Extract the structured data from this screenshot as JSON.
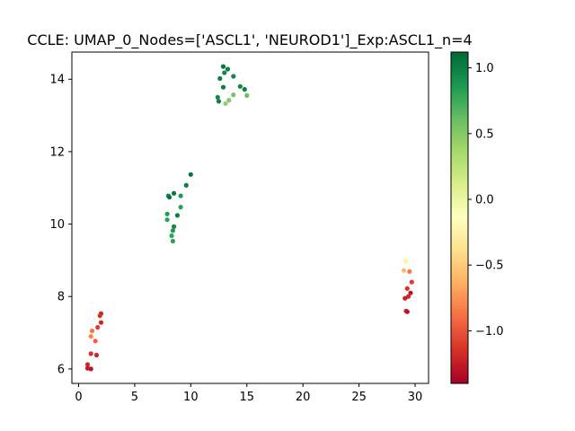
{
  "chart_data": {
    "type": "scatter",
    "title": "CCLE: UMAP_0_Nodes=['ASCL1', 'NEUROD1']_Exp:ASCL1_n=4",
    "xlabel": "",
    "ylabel": "",
    "xlim": [
      -0.6,
      31.2
    ],
    "ylim": [
      5.6,
      14.75
    ],
    "xticks": [
      0,
      5,
      10,
      15,
      20,
      25,
      30
    ],
    "yticks": [
      6,
      8,
      10,
      12,
      14
    ],
    "grid": false,
    "colormap": "RdYlGn",
    "colorbar": {
      "range": [
        -1.4,
        1.12
      ],
      "ticks": [
        -1.0,
        -0.5,
        0.0,
        0.5,
        1.0
      ],
      "tick_labels": [
        "−1.0",
        "−0.5",
        "0.0",
        "0.5",
        "1.0"
      ]
    },
    "points": [
      {
        "x": 12.9,
        "y": 14.35,
        "c": 1.05
      },
      {
        "x": 13.3,
        "y": 14.28,
        "c": 1.0
      },
      {
        "x": 13.0,
        "y": 14.18,
        "c": 0.95
      },
      {
        "x": 13.8,
        "y": 14.08,
        "c": 0.95
      },
      {
        "x": 12.6,
        "y": 14.02,
        "c": 1.0
      },
      {
        "x": 12.9,
        "y": 13.78,
        "c": 1.0
      },
      {
        "x": 14.4,
        "y": 13.8,
        "c": 0.95
      },
      {
        "x": 14.8,
        "y": 13.72,
        "c": 1.0
      },
      {
        "x": 13.8,
        "y": 13.57,
        "c": 0.55
      },
      {
        "x": 15.0,
        "y": 13.55,
        "c": 0.6
      },
      {
        "x": 12.4,
        "y": 13.5,
        "c": 0.95
      },
      {
        "x": 12.5,
        "y": 13.39,
        "c": 1.0
      },
      {
        "x": 13.4,
        "y": 13.42,
        "c": 0.5
      },
      {
        "x": 13.1,
        "y": 13.33,
        "c": 0.45
      },
      {
        "x": 10.0,
        "y": 11.37,
        "c": 1.05
      },
      {
        "x": 9.6,
        "y": 11.07,
        "c": 1.0
      },
      {
        "x": 8.5,
        "y": 10.85,
        "c": 1.05
      },
      {
        "x": 8.0,
        "y": 10.78,
        "c": 0.95
      },
      {
        "x": 9.1,
        "y": 10.78,
        "c": 0.85
      },
      {
        "x": 8.1,
        "y": 10.74,
        "c": 1.05
      },
      {
        "x": 9.1,
        "y": 10.47,
        "c": 0.8
      },
      {
        "x": 7.9,
        "y": 10.28,
        "c": 0.85
      },
      {
        "x": 8.8,
        "y": 10.24,
        "c": 1.0
      },
      {
        "x": 7.9,
        "y": 10.12,
        "c": 0.8
      },
      {
        "x": 8.5,
        "y": 9.93,
        "c": 0.95
      },
      {
        "x": 8.4,
        "y": 9.82,
        "c": 0.85
      },
      {
        "x": 8.3,
        "y": 9.68,
        "c": 0.8
      },
      {
        "x": 8.4,
        "y": 9.53,
        "c": 0.8
      },
      {
        "x": 29.1,
        "y": 9.02,
        "c": -0.15
      },
      {
        "x": 29.2,
        "y": 8.97,
        "c": -0.25
      },
      {
        "x": 29.0,
        "y": 8.72,
        "c": -0.6
      },
      {
        "x": 29.5,
        "y": 8.69,
        "c": -0.85
      },
      {
        "x": 29.7,
        "y": 8.4,
        "c": -1.1
      },
      {
        "x": 29.3,
        "y": 8.22,
        "c": -1.15
      },
      {
        "x": 29.6,
        "y": 8.1,
        "c": -1.3
      },
      {
        "x": 29.4,
        "y": 8.0,
        "c": -1.2
      },
      {
        "x": 29.1,
        "y": 7.95,
        "c": -1.25
      },
      {
        "x": 29.2,
        "y": 7.6,
        "c": -1.2
      },
      {
        "x": 29.3,
        "y": 7.58,
        "c": -1.3
      },
      {
        "x": 2.0,
        "y": 7.53,
        "c": -1.2
      },
      {
        "x": 1.9,
        "y": 7.47,
        "c": -1.15
      },
      {
        "x": 2.0,
        "y": 7.28,
        "c": -1.2
      },
      {
        "x": 1.7,
        "y": 7.15,
        "c": -1.1
      },
      {
        "x": 1.2,
        "y": 7.05,
        "c": -0.85
      },
      {
        "x": 1.1,
        "y": 6.9,
        "c": -0.8
      },
      {
        "x": 1.5,
        "y": 6.77,
        "c": -0.95
      },
      {
        "x": 1.1,
        "y": 6.42,
        "c": -1.15
      },
      {
        "x": 1.6,
        "y": 6.38,
        "c": -1.2
      },
      {
        "x": 0.8,
        "y": 6.12,
        "c": -1.2
      },
      {
        "x": 0.8,
        "y": 6.02,
        "c": -1.25
      },
      {
        "x": 1.1,
        "y": 6.0,
        "c": -1.3
      }
    ]
  }
}
